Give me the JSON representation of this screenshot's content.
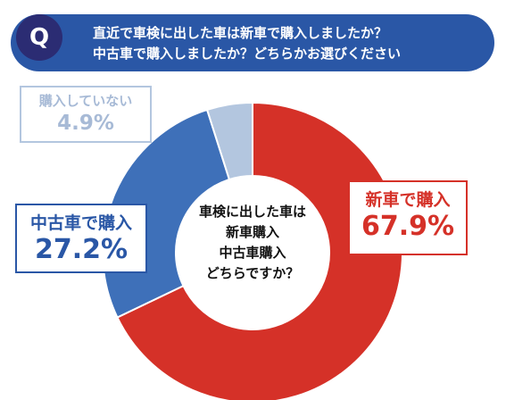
{
  "question": {
    "badge": "Q",
    "lines": [
      "直近で車検に出した車は新車で購入しましたか？",
      "中古車で購入しましたか？どちらかお選びください"
    ]
  },
  "center_lines": [
    "車検に出した車は",
    "新車購入",
    "中古車購入",
    "どちらですか？"
  ],
  "colors": {
    "banner": "#2a57a6",
    "badge": "#2b2c73",
    "shinsha": "#d53128",
    "chuko": "#3e70b9",
    "none": "#b3c6df"
  },
  "chart_data": {
    "type": "pie",
    "title": "",
    "categories": [
      "新車で購入",
      "中古車で購入",
      "購入していない"
    ],
    "values": [
      67.9,
      27.2,
      4.9
    ],
    "value_labels": [
      "67.9%",
      "27.2%",
      "4.9%"
    ],
    "colors": [
      "#d53128",
      "#3e70b9",
      "#b3c6df"
    ]
  }
}
